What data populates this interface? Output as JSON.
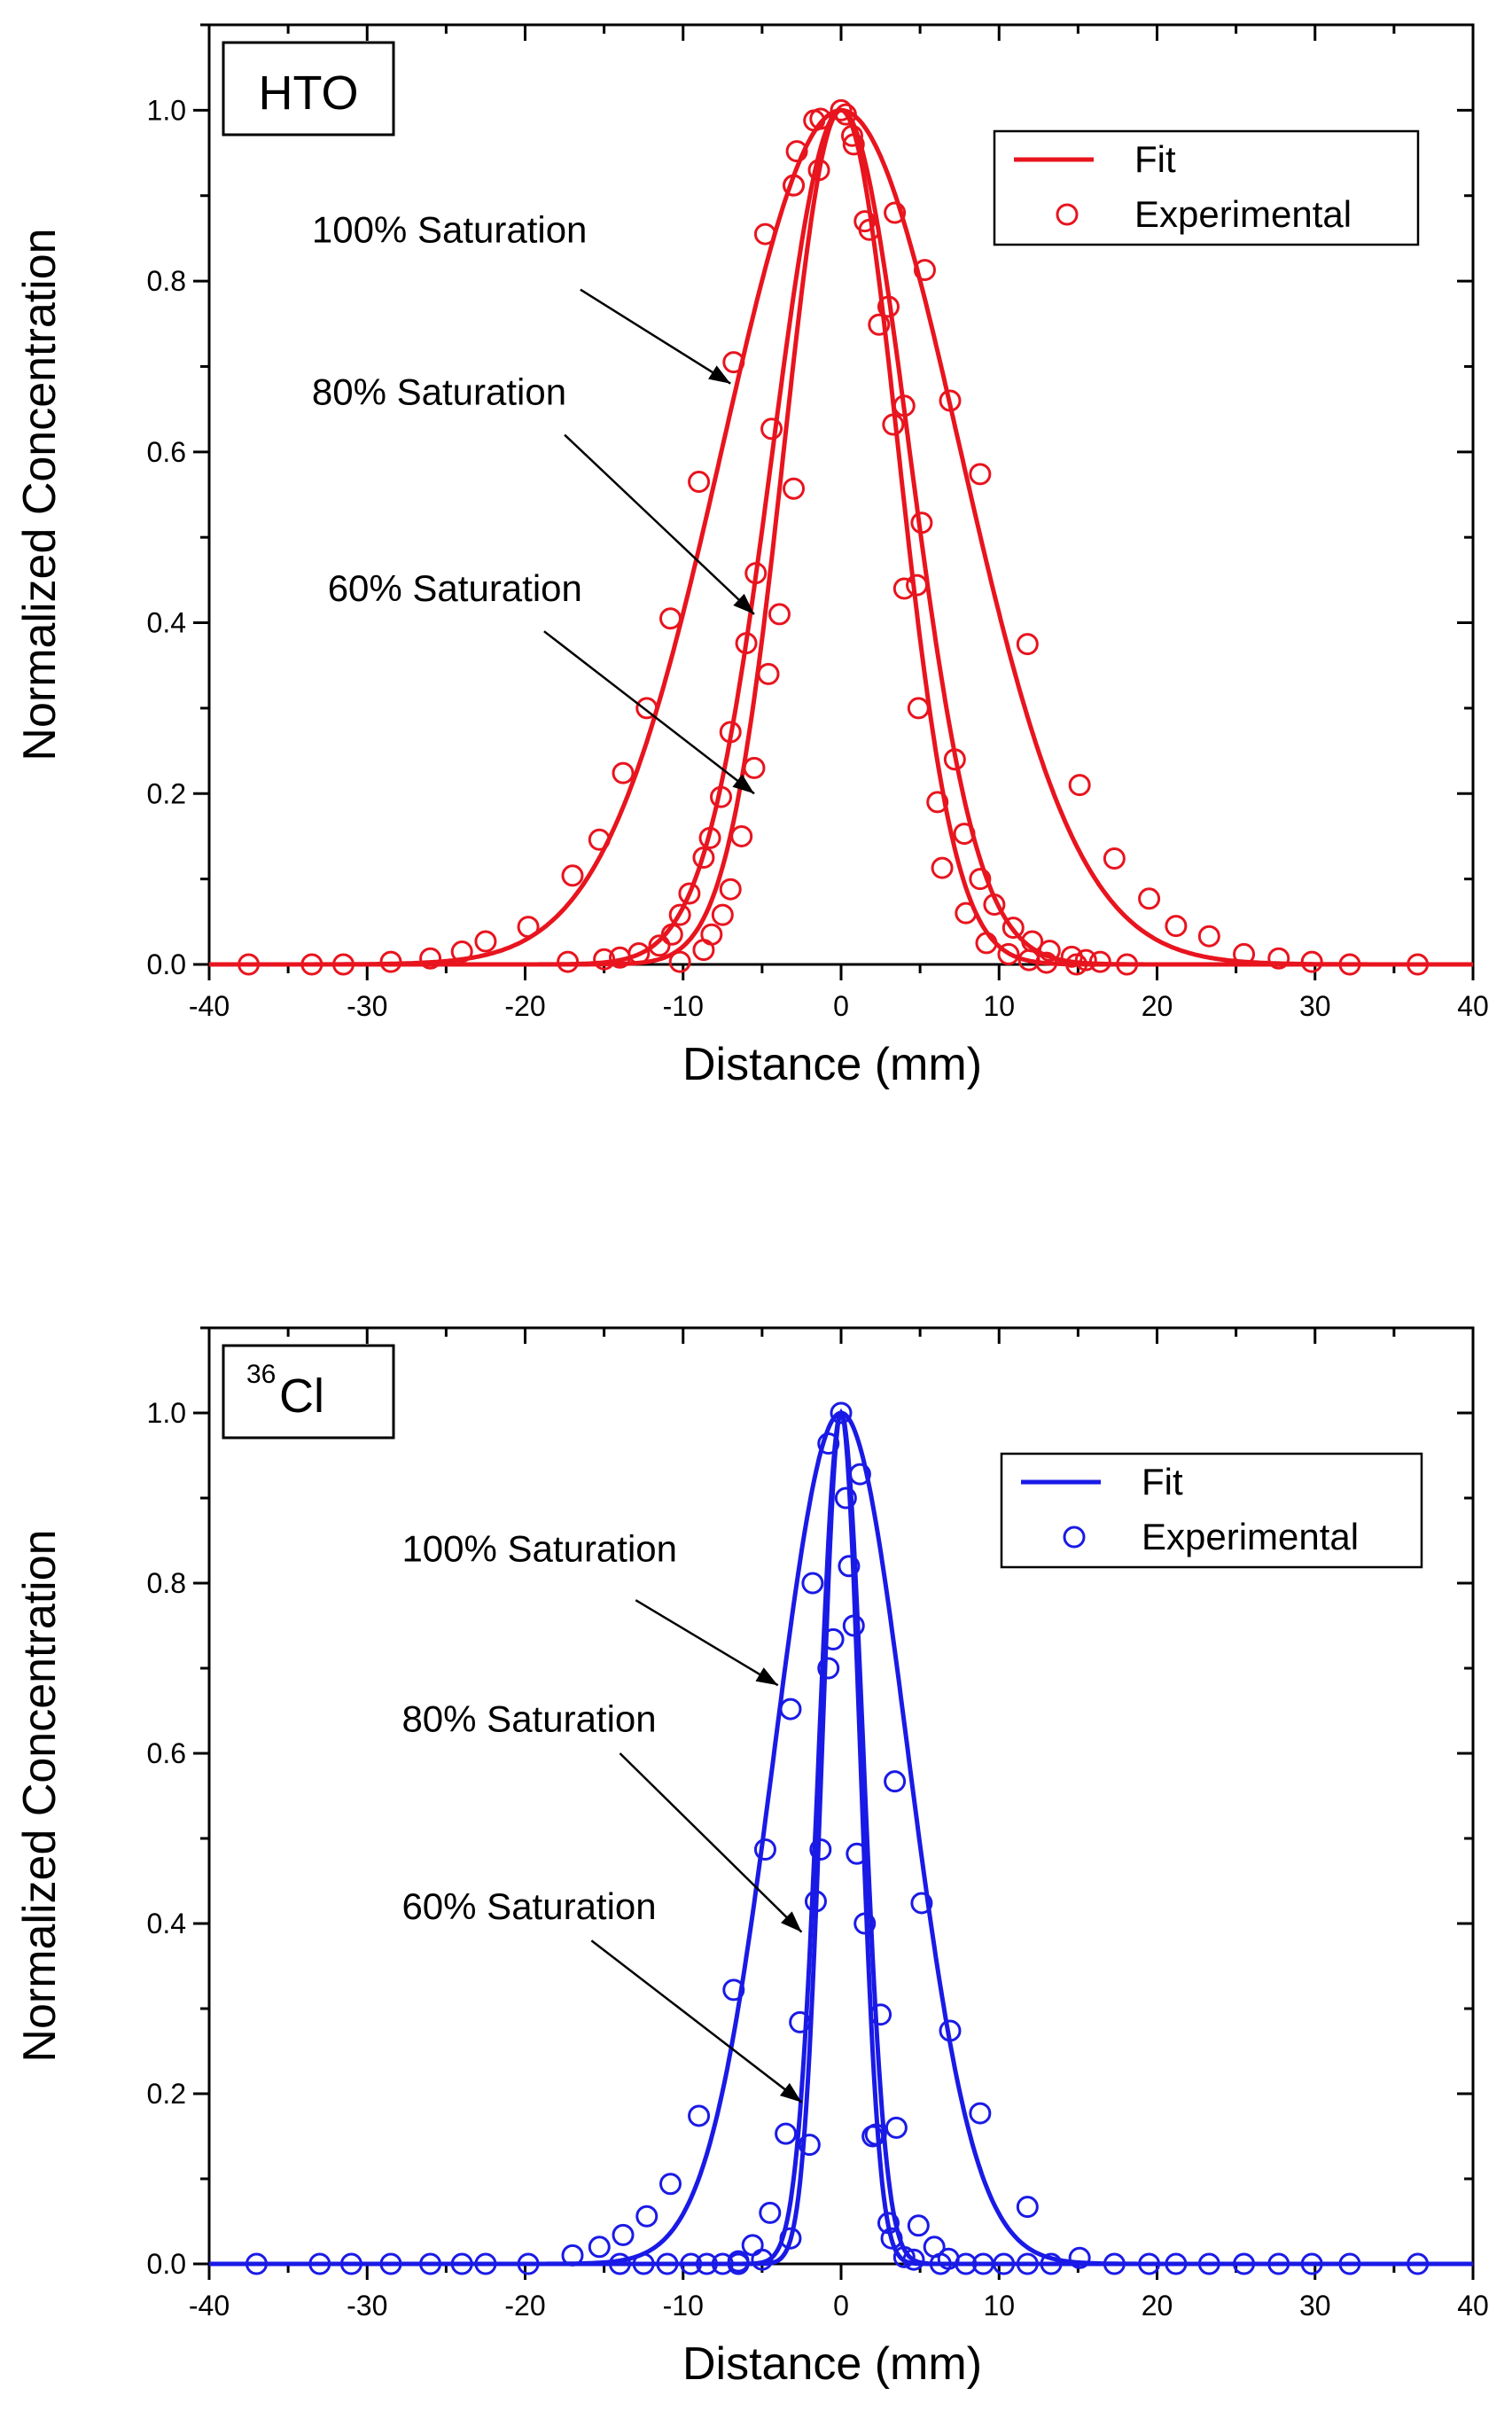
{
  "chart_data": [
    {
      "type": "line",
      "panel_label": "HTO",
      "color": "#e8141e",
      "xlabel": "Distance (mm)",
      "ylabel": "Normalized Concentration",
      "xlim": [
        -40,
        40
      ],
      "ylim": [
        0,
        1.1
      ],
      "xticks": [
        -40,
        -30,
        -20,
        -10,
        0,
        10,
        20,
        30,
        40
      ],
      "xtick_labels": [
        "-40",
        "-30",
        "-20",
        "-10",
        "0",
        "10",
        "20",
        "30",
        "40"
      ],
      "yticks": [
        0,
        0.2,
        0.4,
        0.6,
        0.8,
        1.0
      ],
      "ytick_labels": [
        "0.0",
        "0.2",
        "0.4",
        "0.6",
        "0.8",
        "1.0"
      ],
      "legend": {
        "position": "top-right",
        "fit_label": "Fit",
        "experimental_label": "Experimental"
      },
      "series": [
        {
          "name": "100% Saturation",
          "fit_sigma": 7.5,
          "annotation": "100% Saturation",
          "arrow_from": [
            -16.5,
            0.79
          ],
          "arrow_to": [
            -7.0,
            0.68
          ],
          "label_at": [
            -33.5,
            0.86
          ],
          "experimental": [
            [
              -37.5,
              0.0
            ],
            [
              -33.5,
              0.0
            ],
            [
              -31.5,
              0.0
            ],
            [
              -28.5,
              0.003
            ],
            [
              -26,
              0.007
            ],
            [
              -24,
              0.015
            ],
            [
              -22.5,
              0.027
            ],
            [
              -19.8,
              0.044
            ],
            [
              -17,
              0.104
            ],
            [
              -15.3,
              0.146
            ],
            [
              -13.8,
              0.224
            ],
            [
              -12.3,
              0.3
            ],
            [
              -10.8,
              0.405
            ],
            [
              -9,
              0.565
            ],
            [
              -6.8,
              0.705
            ],
            [
              -4.8,
              0.855
            ],
            [
              -3,
              0.912
            ],
            [
              -2.8,
              0.952
            ],
            [
              -1.7,
              0.988
            ],
            [
              0,
              1.0
            ],
            [
              0.8,
              0.96
            ],
            [
              3.4,
              0.88
            ],
            [
              5.3,
              0.813
            ],
            [
              6.9,
              0.66
            ],
            [
              8.8,
              0.574
            ],
            [
              11.8,
              0.375
            ],
            [
              15.1,
              0.21
            ],
            [
              17.3,
              0.124
            ],
            [
              19.5,
              0.077
            ],
            [
              21.2,
              0.045
            ],
            [
              23.3,
              0.033
            ],
            [
              25.5,
              0.012
            ],
            [
              27.7,
              0.007
            ],
            [
              29.8,
              0.003
            ],
            [
              32.2,
              0.0
            ],
            [
              36.5,
              0.0
            ]
          ]
        },
        {
          "name": "80% Saturation",
          "fit_sigma": 4.3,
          "annotation": "80% Saturation",
          "arrow_from": [
            -17.5,
            0.62
          ],
          "arrow_to": [
            -5.5,
            0.41
          ],
          "label_at": [
            -33.5,
            0.67
          ],
          "experimental": [
            [
              -17.3,
              0.003
            ],
            [
              -15,
              0.006
            ],
            [
              -14,
              0.008
            ],
            [
              -12.8,
              0.013
            ],
            [
              -11.5,
              0.022
            ],
            [
              -10.7,
              0.035
            ],
            [
              -10.2,
              0.058
            ],
            [
              -9.6,
              0.083
            ],
            [
              -8.7,
              0.125
            ],
            [
              -8.3,
              0.148
            ],
            [
              -7.6,
              0.196
            ],
            [
              -7,
              0.272
            ],
            [
              -6,
              0.376
            ],
            [
              -5.4,
              0.458
            ],
            [
              -4.4,
              0.627
            ],
            [
              -3,
              0.912
            ],
            [
              -1.3,
              0.99
            ],
            [
              0.3,
              0.995
            ],
            [
              1.8,
              0.86
            ],
            [
              2.4,
              0.749
            ],
            [
              3.3,
              0.632
            ],
            [
              4,
              0.654
            ],
            [
              4.8,
              0.444
            ],
            [
              5.1,
              0.517
            ],
            [
              6.1,
              0.19
            ],
            [
              7.2,
              0.24
            ],
            [
              7.8,
              0.153
            ],
            [
              8.8,
              0.1
            ],
            [
              9.7,
              0.07
            ],
            [
              10.9,
              0.043
            ],
            [
              12.1,
              0.027
            ],
            [
              13.2,
              0.016
            ],
            [
              14.6,
              0.009
            ],
            [
              15.5,
              0.005
            ],
            [
              16.4,
              0.003
            ],
            [
              18.1,
              0.0
            ]
          ]
        },
        {
          "name": "60% Saturation",
          "fit_sigma": 3.6,
          "annotation": "60% Saturation",
          "arrow_from": [
            -18.8,
            0.39
          ],
          "arrow_to": [
            -5.5,
            0.2
          ],
          "label_at": [
            -32.5,
            0.44
          ],
          "experimental": [
            [
              -10.2,
              0.003
            ],
            [
              -8.7,
              0.017
            ],
            [
              -8.2,
              0.035
            ],
            [
              -7.5,
              0.058
            ],
            [
              -7.0,
              0.088
            ],
            [
              -6.3,
              0.15
            ],
            [
              -5.5,
              0.23
            ],
            [
              -4.6,
              0.34
            ],
            [
              -3.9,
              0.41
            ],
            [
              -3.0,
              0.557
            ],
            [
              -1.4,
              0.93
            ],
            [
              0.7,
              0.97
            ],
            [
              1.5,
              0.87
            ],
            [
              3.0,
              0.77
            ],
            [
              4.0,
              0.44
            ],
            [
              4.9,
              0.3
            ],
            [
              6.4,
              0.113
            ],
            [
              7.9,
              0.06
            ],
            [
              9.2,
              0.025
            ],
            [
              10.6,
              0.012
            ],
            [
              11.9,
              0.005
            ],
            [
              13.0,
              0.002
            ],
            [
              14.9,
              0.0
            ]
          ]
        }
      ]
    },
    {
      "type": "line",
      "panel_label_super": "36",
      "panel_label": "Cl",
      "color": "#1a1ae6",
      "xlabel": "Distance (mm)",
      "ylabel": "Normalized Concentration",
      "xlim": [
        -40,
        40
      ],
      "ylim": [
        0,
        1.1
      ],
      "xticks": [
        -40,
        -30,
        -20,
        -10,
        0,
        10,
        20,
        30,
        40
      ],
      "xtick_labels": [
        "-40",
        "-30",
        "-20",
        "-10",
        "0",
        "10",
        "20",
        "30",
        "40"
      ],
      "yticks": [
        0,
        0.2,
        0.4,
        0.6,
        0.8,
        1.0
      ],
      "ytick_labels": [
        "0.0",
        "0.2",
        "0.4",
        "0.6",
        "0.8",
        "1.0"
      ],
      "legend": {
        "position": "top-right",
        "fit_label": "Fit",
        "experimental_label": "Experimental"
      },
      "series": [
        {
          "name": "100% Saturation",
          "fit_sigma": 4.2,
          "annotation": "100% Saturation",
          "arrow_from": [
            -13.0,
            0.78
          ],
          "arrow_to": [
            -4.0,
            0.68
          ],
          "label_at": [
            -27.8,
            0.84
          ],
          "experimental": [
            [
              -37,
              0.0
            ],
            [
              -33,
              0.0
            ],
            [
              -31,
              0.0
            ],
            [
              -28.5,
              0.0
            ],
            [
              -26,
              0.0
            ],
            [
              -24,
              0.0
            ],
            [
              -22.5,
              0.0
            ],
            [
              -19.8,
              0.0
            ],
            [
              -17,
              0.01
            ],
            [
              -15.3,
              0.02
            ],
            [
              -13.8,
              0.034
            ],
            [
              -12.3,
              0.056
            ],
            [
              -10.8,
              0.094
            ],
            [
              -9,
              0.174
            ],
            [
              -6.8,
              0.322
            ],
            [
              -4.8,
              0.487
            ],
            [
              -3.2,
              0.652
            ],
            [
              -1.8,
              0.8
            ],
            [
              -0.8,
              0.964
            ],
            [
              0,
              1.0
            ],
            [
              1.2,
              0.928
            ],
            [
              3.4,
              0.567
            ],
            [
              5.1,
              0.424
            ],
            [
              6.9,
              0.274
            ],
            [
              8.8,
              0.177
            ],
            [
              11.8,
              0.067
            ],
            [
              15.1,
              0.007
            ],
            [
              17.3,
              0.0
            ],
            [
              19.5,
              0.0
            ],
            [
              21.2,
              0.0
            ],
            [
              23.3,
              0.0
            ],
            [
              25.5,
              0.0
            ],
            [
              27.7,
              0.0
            ],
            [
              29.8,
              0.0
            ],
            [
              32.2,
              0.0
            ],
            [
              36.5,
              0.0
            ]
          ]
        },
        {
          "name": "80% Saturation",
          "fit_sigma": 1.4,
          "annotation": "80% Saturation",
          "arrow_from": [
            -14.0,
            0.6
          ],
          "arrow_to": [
            -2.5,
            0.39
          ],
          "label_at": [
            -27.8,
            0.64
          ],
          "experimental": [
            [
              -14.0,
              0.0
            ],
            [
              -12.5,
              0.0
            ],
            [
              -11.0,
              0.0
            ],
            [
              -9.5,
              0.0
            ],
            [
              -8.5,
              0.0
            ],
            [
              -7.5,
              0.0
            ],
            [
              -6.5,
              0.003
            ],
            [
              -5.6,
              0.022
            ],
            [
              -4.5,
              0.06
            ],
            [
              -3.5,
              0.153
            ],
            [
              -2.6,
              0.284
            ],
            [
              -1.6,
              0.426
            ],
            [
              -1.3,
              0.487
            ],
            [
              -0.5,
              0.734
            ],
            [
              0.3,
              0.9
            ],
            [
              0.5,
              0.82
            ],
            [
              1.0,
              0.482
            ],
            [
              1.5,
              0.4
            ],
            [
              2.2,
              0.152
            ],
            [
              2.5,
              0.293
            ],
            [
              3.0,
              0.048
            ],
            [
              3.5,
              0.16
            ],
            [
              4.0,
              0.008
            ],
            [
              4.9,
              0.045
            ],
            [
              5.9,
              0.02
            ],
            [
              6.8,
              0.006
            ],
            [
              7.9,
              0.0
            ],
            [
              9.0,
              0.0
            ],
            [
              10.3,
              0.0
            ],
            [
              11.8,
              0.0
            ],
            [
              13.3,
              0.0
            ]
          ]
        },
        {
          "name": "60% Saturation",
          "fit_sigma": 1.2,
          "annotation": "60% Saturation",
          "arrow_from": [
            -15.8,
            0.38
          ],
          "arrow_to": [
            -2.5,
            0.19
          ],
          "label_at": [
            -27.8,
            0.42
          ],
          "experimental": [
            [
              -6.5,
              0.0
            ],
            [
              -5.0,
              0.005
            ],
            [
              -3.2,
              0.03
            ],
            [
              -2.0,
              0.14
            ],
            [
              -0.8,
              0.7
            ],
            [
              0.8,
              0.75
            ],
            [
              2.0,
              0.15
            ],
            [
              3.2,
              0.03
            ],
            [
              4.6,
              0.005
            ],
            [
              6.3,
              0.0
            ]
          ]
        }
      ]
    }
  ]
}
